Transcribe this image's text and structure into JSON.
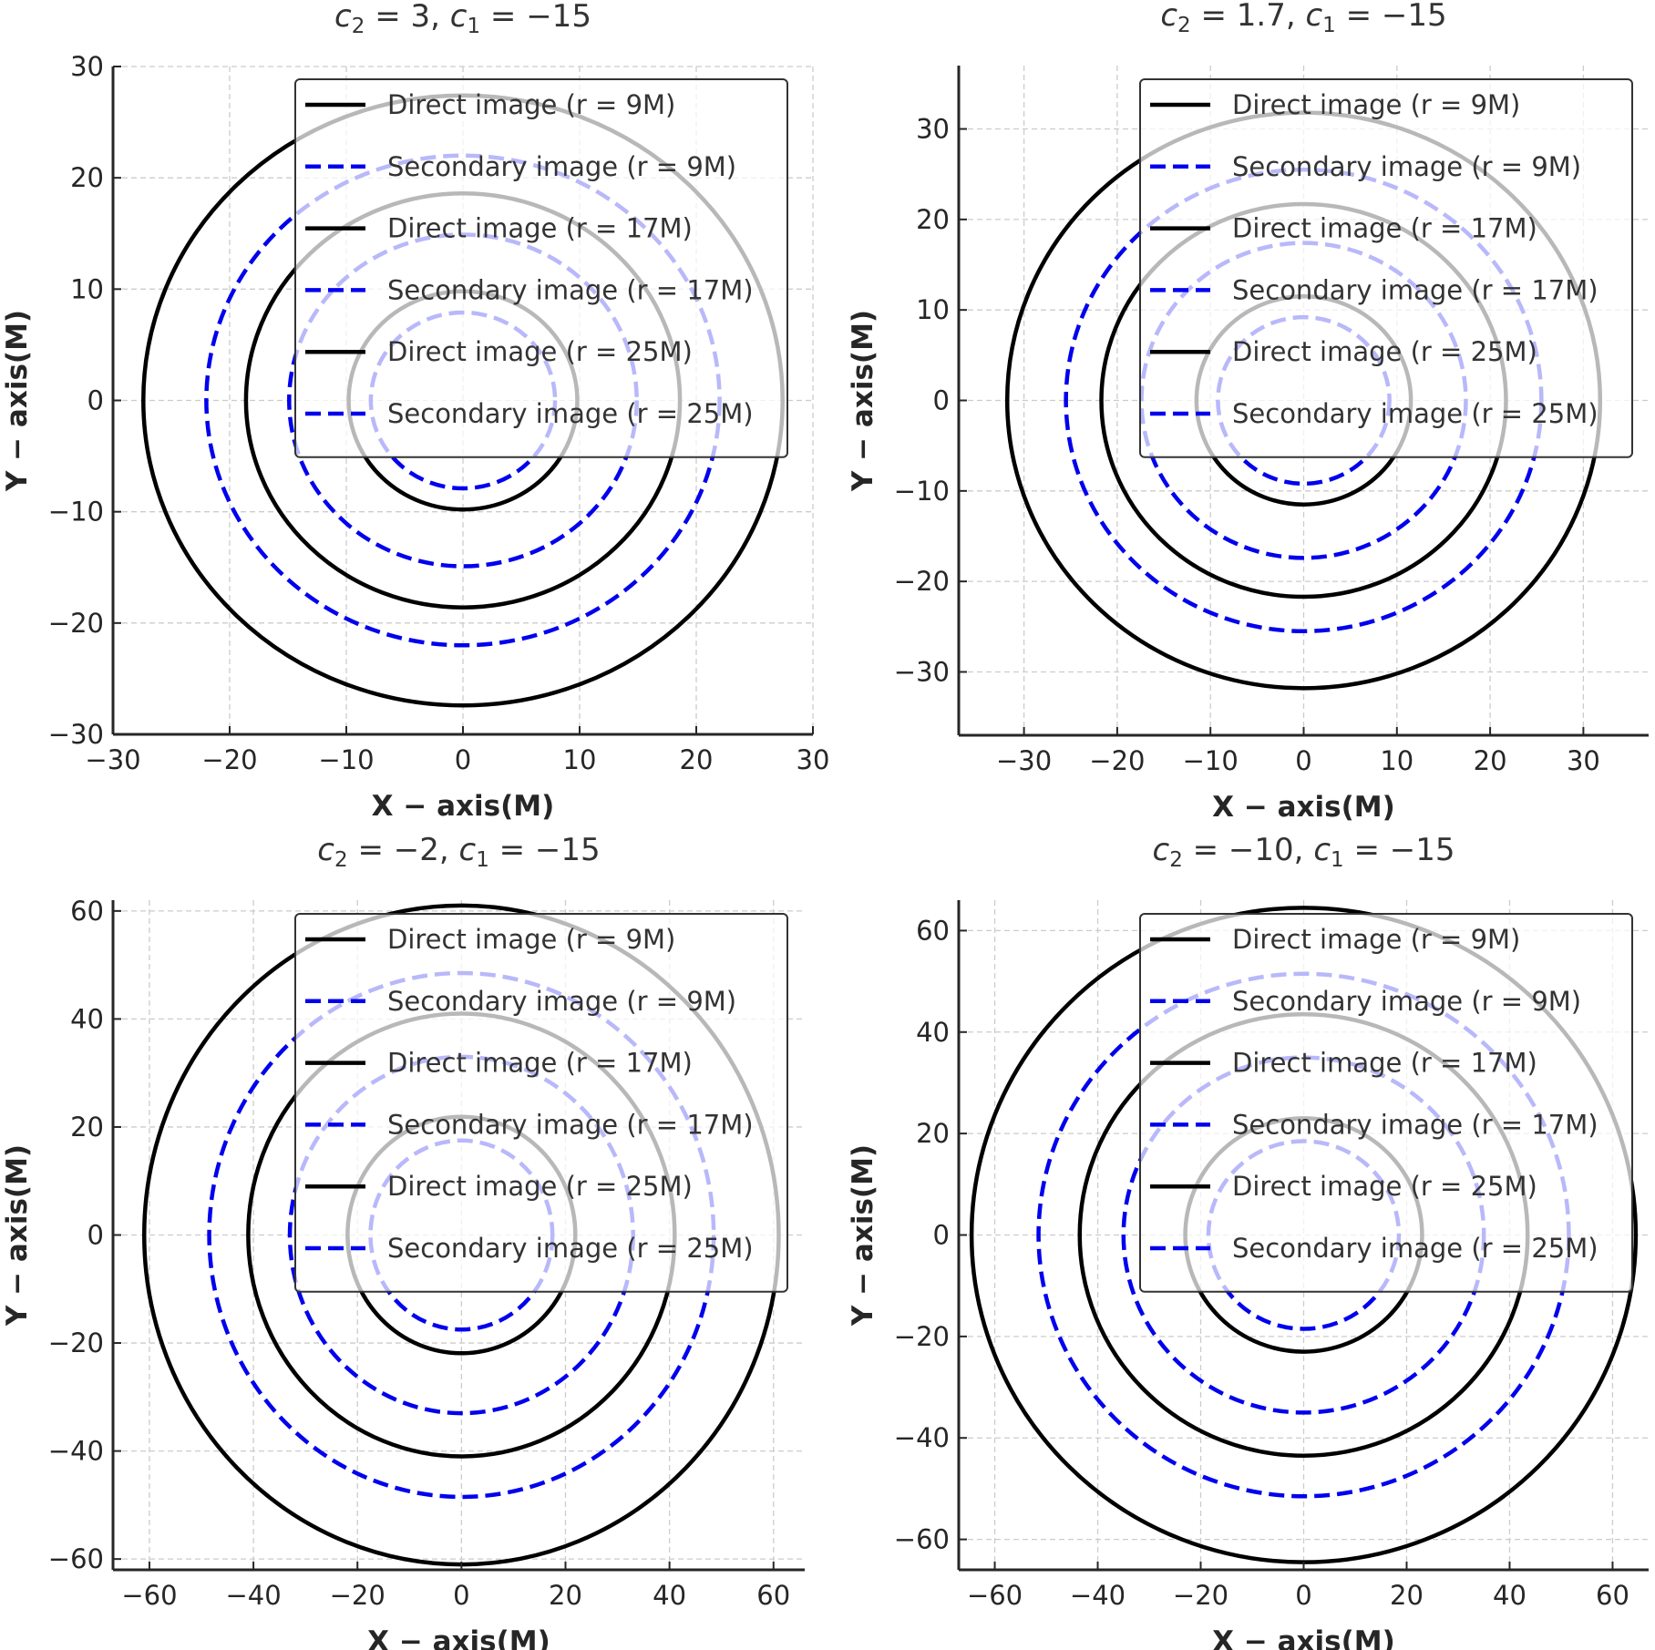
{
  "figure": {
    "description": "Four-panel comparison of direct and secondary image contours for different c2 values"
  },
  "chart_data": [
    {
      "type": "line",
      "title": {
        "c2": "3",
        "c1": "−15"
      },
      "xlabel": "X − axis(M)",
      "ylabel": "Y − axis(M)",
      "xlim": [
        -30,
        30
      ],
      "ylim": [
        -30,
        30
      ],
      "xticks": [
        -30,
        -20,
        -10,
        0,
        10,
        20,
        30
      ],
      "yticks": [
        -30,
        -20,
        -10,
        0,
        10,
        20,
        30
      ],
      "grid": true,
      "legend_position": "top-right",
      "series": [
        {
          "name": "Direct image (r = 9M)",
          "style": "solid",
          "color": "#000000",
          "radius": 27.4
        },
        {
          "name": "Secondary image (r = 9M)",
          "style": "dashed",
          "color": "#0000ee",
          "radius": 22.0
        },
        {
          "name": "Direct image (r = 17M)",
          "style": "solid",
          "color": "#000000",
          "radius": 18.6
        },
        {
          "name": "Secondary image (r = 17M)",
          "style": "dashed",
          "color": "#0000ee",
          "radius": 14.9
        },
        {
          "name": "Direct image (r = 25M)",
          "style": "solid",
          "color": "#000000",
          "radius": 9.8
        },
        {
          "name": "Secondary image (r = 25M)",
          "style": "dashed",
          "color": "#0000ee",
          "radius": 7.9
        }
      ]
    },
    {
      "type": "line",
      "title": {
        "c2": "1.7",
        "c1": "−15"
      },
      "xlabel": "X − axis(M)",
      "ylabel": "Y − axis(M)",
      "xlim": [
        -37,
        37
      ],
      "ylim": [
        -37,
        37
      ],
      "xticks": [
        -30,
        -20,
        -10,
        0,
        10,
        20,
        30
      ],
      "yticks": [
        -30,
        -20,
        -10,
        0,
        10,
        20,
        30
      ],
      "grid": true,
      "legend_position": "top-right",
      "series": [
        {
          "name": "Direct image (r = 9M)",
          "style": "solid",
          "color": "#000000",
          "radius": 31.8
        },
        {
          "name": "Secondary image (r = 9M)",
          "style": "dashed",
          "color": "#0000ee",
          "radius": 25.5
        },
        {
          "name": "Direct image (r = 17M)",
          "style": "solid",
          "color": "#000000",
          "radius": 21.7
        },
        {
          "name": "Secondary image (r = 17M)",
          "style": "dashed",
          "color": "#0000ee",
          "radius": 17.4
        },
        {
          "name": "Direct image (r = 25M)",
          "style": "solid",
          "color": "#000000",
          "radius": 11.5
        },
        {
          "name": "Secondary image (r = 25M)",
          "style": "dashed",
          "color": "#0000ee",
          "radius": 9.2
        }
      ]
    },
    {
      "type": "line",
      "title": {
        "c2": "−2",
        "c1": "−15"
      },
      "xlabel": "X − axis(M)",
      "ylabel": "Y − axis(M)",
      "xlim": [
        -67,
        66
      ],
      "ylim": [
        -62,
        62
      ],
      "xticks": [
        -60,
        -40,
        -20,
        0,
        20,
        40,
        60
      ],
      "yticks": [
        -60,
        -40,
        -20,
        0,
        20,
        40,
        60
      ],
      "grid": true,
      "legend_position": "top-right",
      "series": [
        {
          "name": "Direct image (r = 9M)",
          "style": "solid",
          "color": "#000000",
          "radius": 61.0
        },
        {
          "name": "Secondary image (r = 9M)",
          "style": "dashed",
          "color": "#0000ee",
          "radius": 48.5
        },
        {
          "name": "Direct image (r = 17M)",
          "style": "solid",
          "color": "#000000",
          "radius": 41.0
        },
        {
          "name": "Secondary image (r = 17M)",
          "style": "dashed",
          "color": "#0000ee",
          "radius": 33.0
        },
        {
          "name": "Direct image (r = 25M)",
          "style": "solid",
          "color": "#000000",
          "radius": 21.9
        },
        {
          "name": "Secondary image (r = 25M)",
          "style": "dashed",
          "color": "#0000ee",
          "radius": 17.5
        }
      ]
    },
    {
      "type": "line",
      "title": {
        "c2": "−10",
        "c1": "−15"
      },
      "xlabel": "X − axis(M)",
      "ylabel": "Y − axis(M)",
      "xlim": [
        -67,
        67
      ],
      "ylim": [
        -66,
        66
      ],
      "xticks": [
        -60,
        -40,
        -20,
        0,
        20,
        40,
        60
      ],
      "yticks": [
        -60,
        -40,
        -20,
        0,
        20,
        40,
        60
      ],
      "grid": true,
      "legend_position": "top-right",
      "series": [
        {
          "name": "Direct image (r = 9M)",
          "style": "solid",
          "color": "#000000",
          "radius": 64.5
        },
        {
          "name": "Secondary image (r = 9M)",
          "style": "dashed",
          "color": "#0000ee",
          "radius": 51.5
        },
        {
          "name": "Direct image (r = 17M)",
          "style": "solid",
          "color": "#000000",
          "radius": 43.5
        },
        {
          "name": "Secondary image (r = 17M)",
          "style": "dashed",
          "color": "#0000ee",
          "radius": 35.0
        },
        {
          "name": "Direct image (r = 25M)",
          "style": "solid",
          "color": "#000000",
          "radius": 23.0
        },
        {
          "name": "Secondary image (r = 25M)",
          "style": "dashed",
          "color": "#0000ee",
          "radius": 18.5
        }
      ]
    }
  ]
}
